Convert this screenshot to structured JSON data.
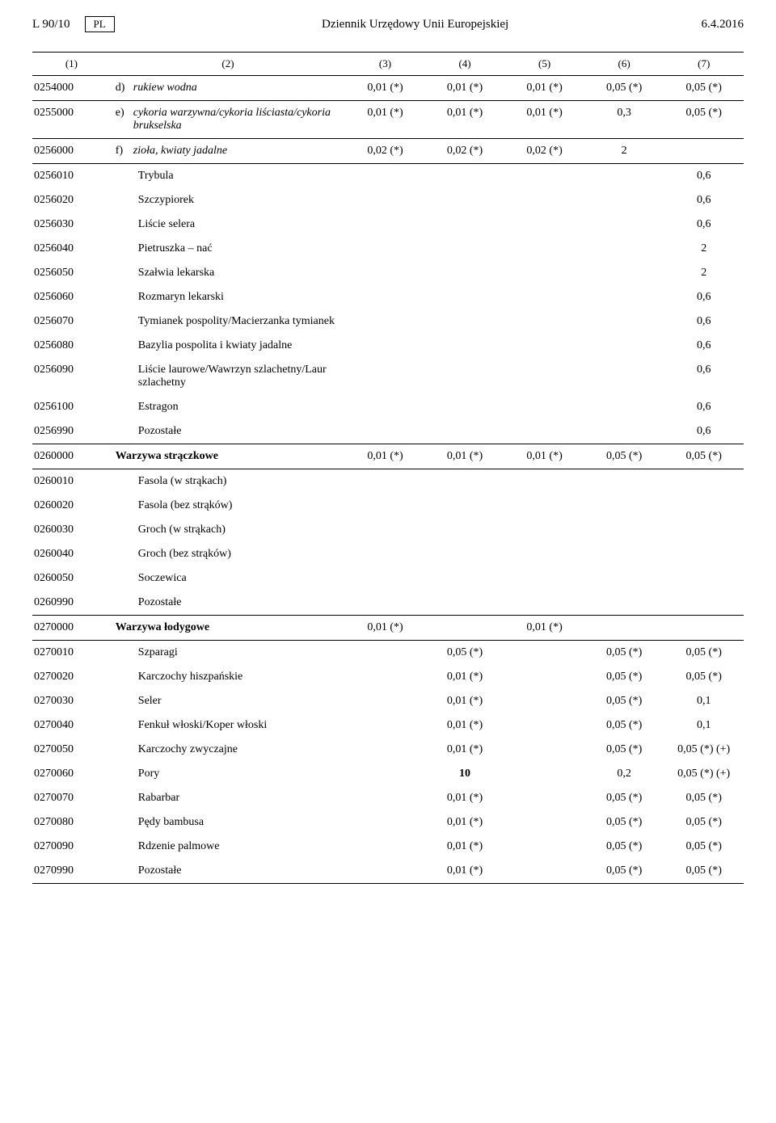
{
  "header": {
    "left": "L 90/10",
    "lang_box": "PL",
    "center": "Dziennik Urzędowy Unii Europejskiej",
    "right": "6.4.2016"
  },
  "colhead": [
    "(1)",
    "(2)",
    "(3)",
    "(4)",
    "(5)",
    "(6)",
    "(7)"
  ],
  "r0254000": {
    "code": "0254000",
    "let": "d)",
    "desc": "rukiew wodna",
    "v3": "0,01 (*)",
    "v4": "0,01 (*)",
    "v5": "0,01 (*)",
    "v6": "0,05 (*)",
    "v7": "0,05 (*)"
  },
  "r0255000": {
    "code": "0255000",
    "let": "e)",
    "desc": "cykoria warzywna/cykoria liściasta/cykoria brukselska",
    "v3": "0,01 (*)",
    "v4": "0,01 (*)",
    "v5": "0,01 (*)",
    "v6": "0,3",
    "v7": "0,05 (*)"
  },
  "r0256000": {
    "code": "0256000",
    "let": "f)",
    "desc": "zioła, kwiaty jadalne",
    "v3": "0,02 (*)",
    "v4": "0,02 (*)",
    "v5": "0,02 (*)",
    "v6": "2",
    "v7": ""
  },
  "r0256010": {
    "code": "0256010",
    "desc": "Trybula",
    "v7": "0,6"
  },
  "r0256020": {
    "code": "0256020",
    "desc": "Szczypiorek",
    "v7": "0,6"
  },
  "r0256030": {
    "code": "0256030",
    "desc": "Liście selera",
    "v7": "0,6"
  },
  "r0256040": {
    "code": "0256040",
    "desc": "Pietruszka – nać",
    "v7": "2"
  },
  "r0256050": {
    "code": "0256050",
    "desc": "Szałwia lekarska",
    "v7": "2"
  },
  "r0256060": {
    "code": "0256060",
    "desc": "Rozmaryn lekarski",
    "v7": "0,6"
  },
  "r0256070": {
    "code": "0256070",
    "desc": "Tymianek pospolity/Macierzanka tymianek",
    "v7": "0,6"
  },
  "r0256080": {
    "code": "0256080",
    "desc": "Bazylia pospolita i kwiaty jadalne",
    "v7": "0,6"
  },
  "r0256090": {
    "code": "0256090",
    "desc": "Liście laurowe/Wawrzyn szlachetny/Laur szlachetny",
    "v7": "0,6"
  },
  "r0256100": {
    "code": "0256100",
    "desc": "Estragon",
    "v7": "0,6"
  },
  "r0256990": {
    "code": "0256990",
    "desc": "Pozostałe",
    "v7": "0,6"
  },
  "r0260000": {
    "code": "0260000",
    "desc": "Warzywa strączkowe",
    "v3": "0,01 (*)",
    "v4": "0,01 (*)",
    "v5": "0,01 (*)",
    "v6": "0,05 (*)",
    "v7": "0,05 (*)"
  },
  "r0260010": {
    "code": "0260010",
    "desc": "Fasola (w strąkach)"
  },
  "r0260020": {
    "code": "0260020",
    "desc": "Fasola (bez strąków)"
  },
  "r0260030": {
    "code": "0260030",
    "desc": "Groch (w strąkach)"
  },
  "r0260040": {
    "code": "0260040",
    "desc": "Groch (bez strąków)"
  },
  "r0260050": {
    "code": "0260050",
    "desc": "Soczewica"
  },
  "r0260990": {
    "code": "0260990",
    "desc": "Pozostałe"
  },
  "r0270000": {
    "code": "0270000",
    "desc": "Warzywa łodygowe",
    "v3": "0,01 (*)",
    "v4": "",
    "v5": "0,01 (*)",
    "v6": "",
    "v7": ""
  },
  "r0270010": {
    "code": "0270010",
    "desc": "Szparagi",
    "v4": "0,05 (*)",
    "v6": "0,05 (*)",
    "v7": "0,05 (*)"
  },
  "r0270020": {
    "code": "0270020",
    "desc": "Karczochy hiszpańskie",
    "v4": "0,01 (*)",
    "v6": "0,05 (*)",
    "v7": "0,05 (*)"
  },
  "r0270030": {
    "code": "0270030",
    "desc": "Seler",
    "v4": "0,01 (*)",
    "v6": "0,05 (*)",
    "v7": "0,1"
  },
  "r0270040": {
    "code": "0270040",
    "desc": "Fenkuł włoski/Koper włoski",
    "v4": "0,01 (*)",
    "v6": "0,05 (*)",
    "v7": "0,1"
  },
  "r0270050": {
    "code": "0270050",
    "desc": "Karczochy zwyczajne",
    "v4": "0,01 (*)",
    "v6": "0,05 (*)",
    "v7": "0,05 (*) (+)"
  },
  "r0270060": {
    "code": "0270060",
    "desc": "Pory",
    "v4": "10",
    "v6": "0,2",
    "v7": "0,05 (*) (+)"
  },
  "r0270070": {
    "code": "0270070",
    "desc": "Rabarbar",
    "v4": "0,01 (*)",
    "v6": "0,05 (*)",
    "v7": "0,05 (*)"
  },
  "r0270080": {
    "code": "0270080",
    "desc": "Pędy bambusa",
    "v4": "0,01 (*)",
    "v6": "0,05 (*)",
    "v7": "0,05 (*)"
  },
  "r0270090": {
    "code": "0270090",
    "desc": "Rdzenie palmowe",
    "v4": "0,01 (*)",
    "v6": "0,05 (*)",
    "v7": "0,05 (*)"
  },
  "r0270990": {
    "code": "0270990",
    "desc": "Pozostałe",
    "v4": "0,01 (*)",
    "v6": "0,05 (*)",
    "v7": "0,05 (*)"
  }
}
